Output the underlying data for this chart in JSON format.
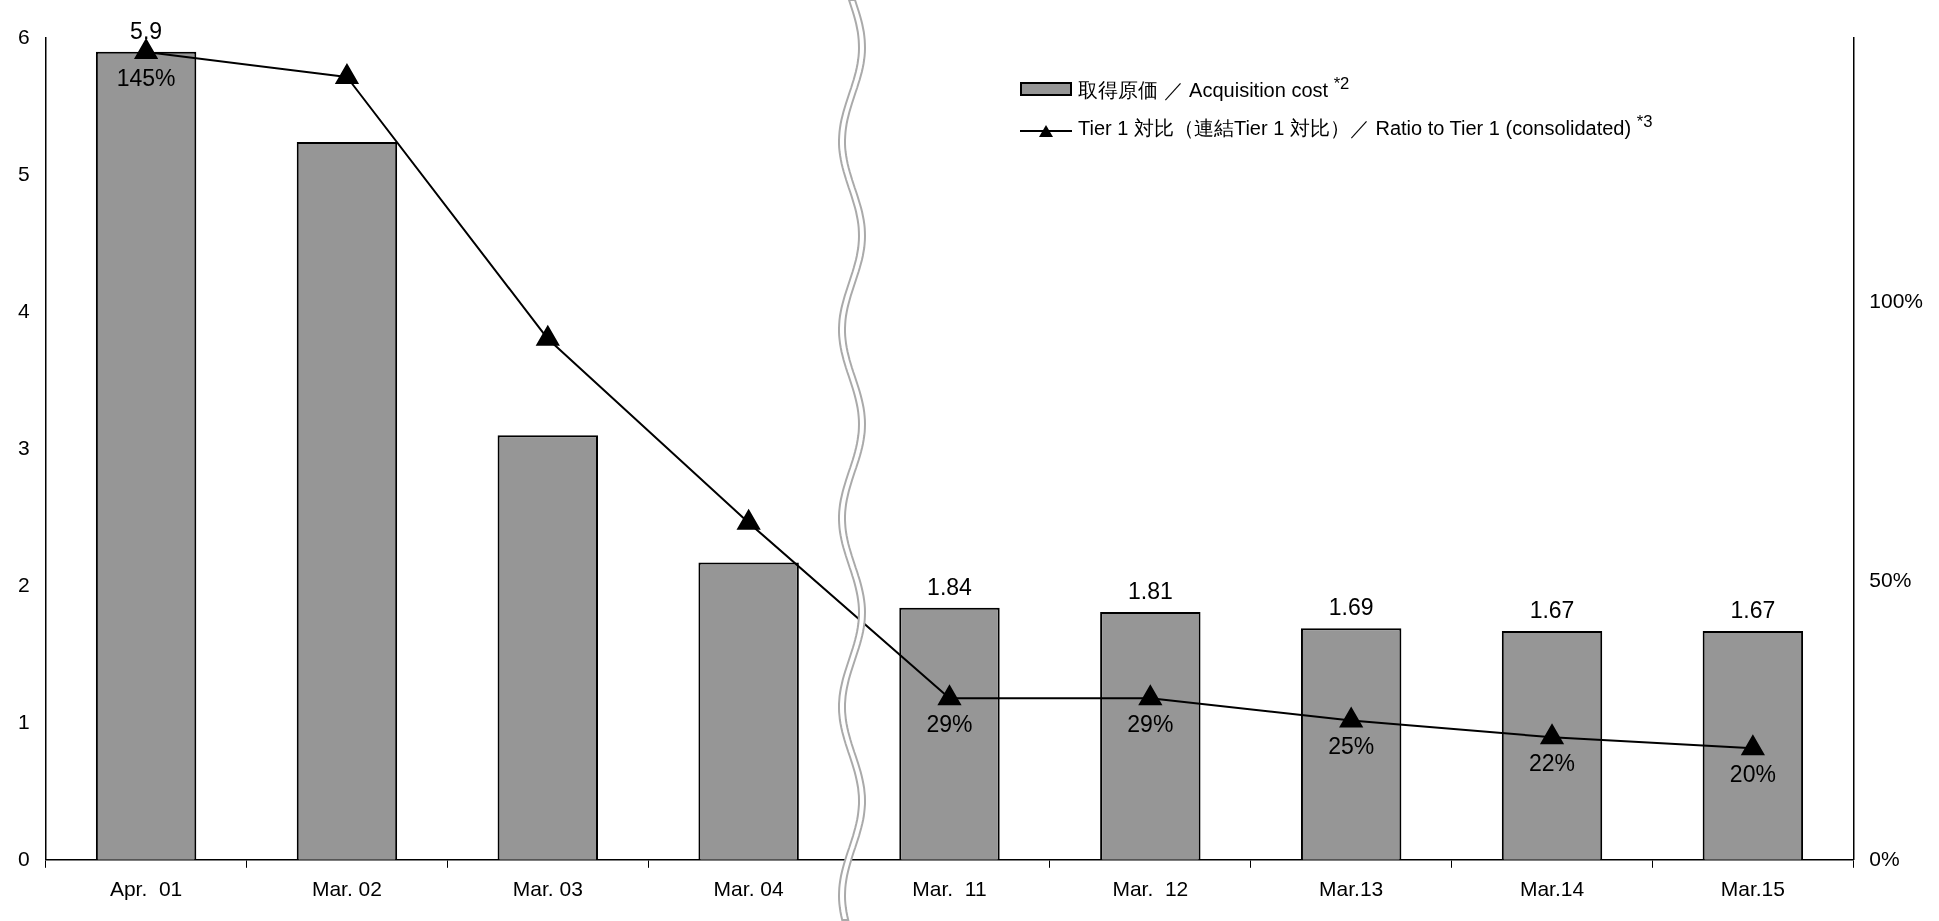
{
  "chart_data": {
    "type": "bar",
    "categories": [
      "Apr.  01",
      "Mar. 02",
      "Mar. 03",
      "Mar. 04",
      "Mar.  11",
      "Mar.  12",
      "Mar.13",
      "Mar.14",
      "Mar.15"
    ],
    "series": [
      {
        "name": "取得原価 ／ Acquisition cost $^{*2}$",
        "color": "#969696",
        "values": [
          5.9,
          5.24,
          3.1,
          2.17,
          1.84,
          1.81,
          1.69,
          1.67,
          1.67
        ],
        "value_labels": [
          "5.9",
          null,
          null,
          null,
          "1.84",
          "1.81",
          "1.69",
          "1.67",
          "1.67"
        ]
      },
      {
        "type": "line",
        "axis": "y2",
        "name": "Tier 1 対比（連結Tier 1 対比）／ Ratio to Tier 1 (consolidated) $^{*3}$",
        "color": "#000000",
        "values": [
          145,
          140.5,
          93.5,
          60.5,
          29,
          29,
          25,
          22,
          20
        ],
        "value_labels": [
          "145%",
          null,
          null,
          null,
          "29%",
          "29%",
          "25%",
          "22%",
          "20%"
        ]
      }
    ],
    "ylim": [
      0,
      6
    ],
    "yticks": [
      0,
      1,
      2,
      3,
      4,
      5,
      6
    ],
    "y2lim": [
      0,
      147.5
    ],
    "y2ticks": [
      {
        "value": 0,
        "label": "0%"
      },
      {
        "value": 50,
        "label": "50%"
      },
      {
        "value": 100,
        "label": "100%"
      }
    ],
    "marker": "triangle",
    "grid": false,
    "legend": "top right"
  }
}
